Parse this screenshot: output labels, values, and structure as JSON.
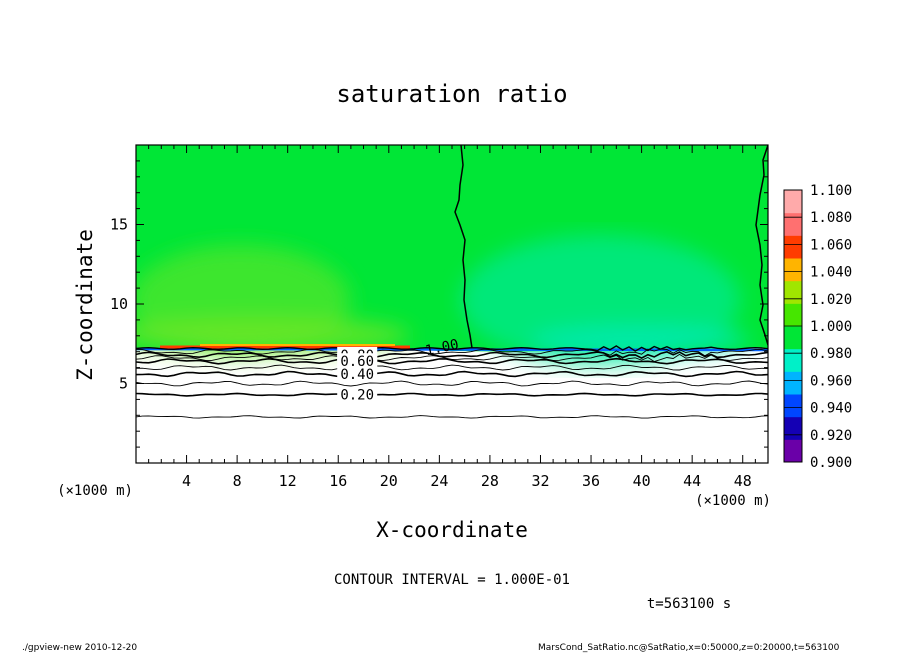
{
  "chart_data": {
    "type": "heatmap",
    "title": "saturation ratio",
    "xlabel": "X-coordinate",
    "ylabel": "Z-coordinate",
    "x_unit": "(×1000 m)",
    "z_unit": "(×1000 m)",
    "xlim": [
      0,
      50
    ],
    "ylim": [
      0,
      20
    ],
    "x_ticks": [
      "4",
      "8",
      "12",
      "16",
      "20",
      "24",
      "28",
      "32",
      "36",
      "40",
      "44",
      "48"
    ],
    "y_ticks": [
      "5",
      "10",
      "15"
    ],
    "colorbar": {
      "labels": [
        "0.900",
        "0.920",
        "0.940",
        "0.960",
        "0.980",
        "1.000",
        "1.020",
        "1.040",
        "1.060",
        "1.080",
        "1.100"
      ],
      "colors": [
        "#6a00a8",
        "#1400b4",
        "#0046ff",
        "#00b4ff",
        "#00f0c8",
        "#00e636",
        "#46e600",
        "#a0e600",
        "#ffb400",
        "#ff3c00",
        "#ff7070",
        "#ffaaaa"
      ]
    },
    "contour_levels": [
      0.1,
      0.2,
      0.3,
      0.4,
      0.5,
      0.6,
      0.7,
      0.8,
      0.9,
      1.0
    ],
    "contour_labels": [
      {
        "text": "1.00",
        "x": 24.2,
        "z": 7.3
      },
      {
        "text": "0.80",
        "x": 17.5,
        "z": 6.8
      },
      {
        "text": "0.60",
        "x": 17.5,
        "z": 6.4
      },
      {
        "text": "0.40",
        "x": 17.5,
        "z": 5.6
      },
      {
        "text": "0.20",
        "x": 17.5,
        "z": 4.3
      }
    ],
    "annotation": "CONTOUR INTERVAL = 1.000E-01",
    "time_label": "t=563100 s"
  },
  "footer": {
    "left": "./gpview-new  2010-12-20",
    "right": "MarsCond_SatRatio.nc@SatRatio,x=0:50000,z=0:20000,t=563100"
  },
  "colors": {
    "green": "#00e636",
    "green_light": "#3ee42e",
    "cyan_green": "#00e88c",
    "red": "#ff3c00"
  }
}
